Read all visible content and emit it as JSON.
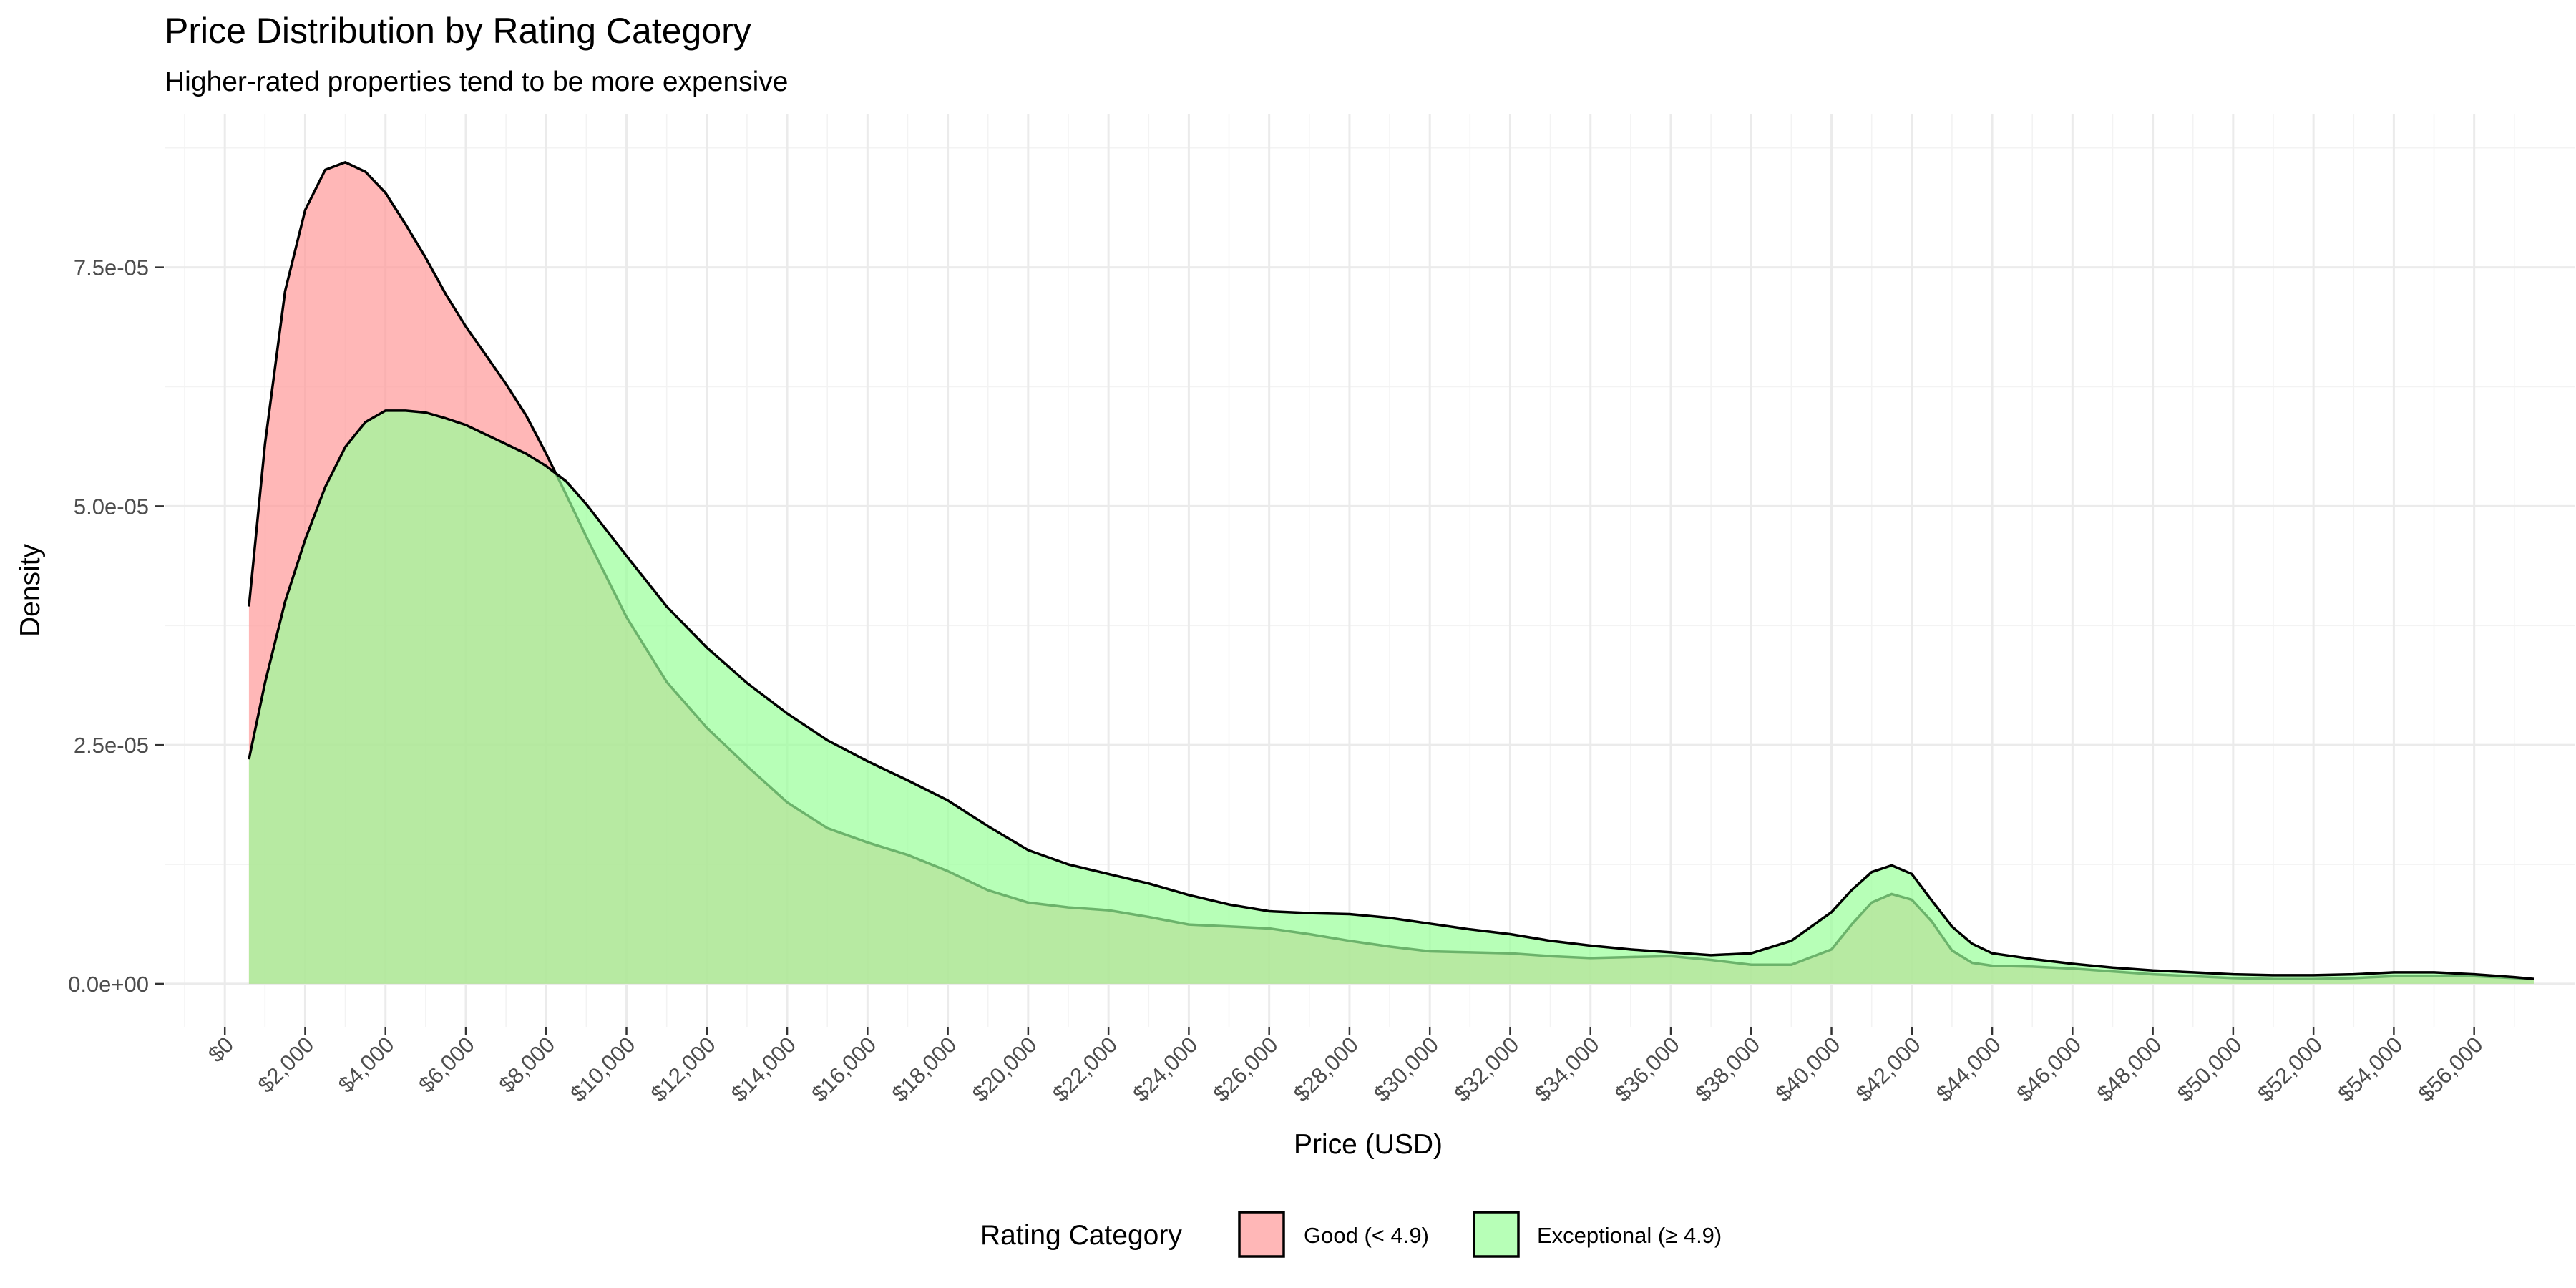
{
  "chart_data": {
    "type": "area",
    "title": "Price Distribution by Rating Category",
    "subtitle": "Higher-rated properties tend to be more expensive",
    "xlabel": "Price (USD)",
    "ylabel": "Density",
    "xlim": [
      -1500,
      58500
    ],
    "ylim": [
      -4.5e-06,
      9.1e-05
    ],
    "x_ticks": [
      0,
      2000,
      4000,
      6000,
      8000,
      10000,
      12000,
      14000,
      16000,
      18000,
      20000,
      22000,
      24000,
      26000,
      28000,
      30000,
      32000,
      34000,
      36000,
      38000,
      40000,
      42000,
      44000,
      46000,
      48000,
      50000,
      52000,
      54000,
      56000
    ],
    "x_tick_labels": [
      "$0",
      "$2,000",
      "$4,000",
      "$6,000",
      "$8,000",
      "$10,000",
      "$12,000",
      "$14,000",
      "$16,000",
      "$18,000",
      "$20,000",
      "$22,000",
      "$24,000",
      "$26,000",
      "$28,000",
      "$30,000",
      "$32,000",
      "$34,000",
      "$36,000",
      "$38,000",
      "$40,000",
      "$42,000",
      "$44,000",
      "$46,000",
      "$48,000",
      "$50,000",
      "$52,000",
      "$54,000",
      "$56,000"
    ],
    "y_ticks": [
      0,
      2.5e-05,
      5e-05,
      7.5e-05
    ],
    "y_tick_labels": [
      "0.0e+00",
      "2.5e-05",
      "5.0e-05",
      "7.5e-05"
    ],
    "grid": true,
    "legend": {
      "title": "Rating Category",
      "position": "bottom"
    },
    "series": [
      {
        "name": "Good (< 4.9)",
        "fill": "#FF9999",
        "opacity": 0.7,
        "x": [
          600,
          1000,
          1500,
          2000,
          2500,
          3000,
          3500,
          4000,
          4500,
          5000,
          5500,
          6000,
          6500,
          7000,
          7500,
          8000,
          8500,
          9000,
          10000,
          11000,
          12000,
          13000,
          14000,
          15000,
          16000,
          17000,
          18000,
          19000,
          20000,
          21000,
          22000,
          23000,
          24000,
          25000,
          26000,
          27000,
          28000,
          29000,
          30000,
          31000,
          32000,
          33000,
          34000,
          35000,
          36000,
          37000,
          38000,
          39000,
          40000,
          40500,
          41000,
          41500,
          42000,
          42500,
          43000,
          43500,
          44000,
          45000,
          46000,
          47000,
          48000,
          49000,
          50000,
          51000,
          52000,
          53000,
          54000,
          55000,
          56000,
          57000,
          57500
        ],
        "y": [
          3.95e-05,
          5.65e-05,
          7.25e-05,
          8.1e-05,
          8.52e-05,
          8.6e-05,
          8.5e-05,
          8.28e-05,
          7.95e-05,
          7.6e-05,
          7.22e-05,
          6.88e-05,
          6.58e-05,
          6.28e-05,
          5.95e-05,
          5.55e-05,
          5.12e-05,
          4.68e-05,
          3.84e-05,
          3.16e-05,
          2.68e-05,
          2.28e-05,
          1.9e-05,
          1.63e-05,
          1.48e-05,
          1.35e-05,
          1.18e-05,
          9.8e-06,
          8.5e-06,
          8e-06,
          7.7e-06,
          7e-06,
          6.2e-06,
          6e-06,
          5.8e-06,
          5.2e-06,
          4.5e-06,
          3.9e-06,
          3.4e-06,
          3.3e-06,
          3.2e-06,
          2.9e-06,
          2.7e-06,
          2.8e-06,
          2.9e-06,
          2.5e-06,
          2e-06,
          2e-06,
          3.6e-06,
          6.2e-06,
          8.5e-06,
          9.4e-06,
          8.8e-06,
          6.5e-06,
          3.5e-06,
          2.2e-06,
          1.9e-06,
          1.8e-06,
          1.6e-06,
          1.3e-06,
          1e-06,
          8e-07,
          6e-07,
          5e-07,
          5e-07,
          6e-07,
          8e-07,
          8e-07,
          8e-07,
          6e-07,
          5e-07
        ]
      },
      {
        "name": "Exceptional (≥ 4.9)",
        "fill": "#99FF99",
        "opacity": 0.7,
        "x": [
          600,
          1000,
          1500,
          2000,
          2500,
          3000,
          3500,
          4000,
          4500,
          5000,
          5500,
          6000,
          6500,
          7000,
          7500,
          8000,
          8500,
          9000,
          10000,
          11000,
          12000,
          13000,
          14000,
          15000,
          16000,
          17000,
          18000,
          19000,
          20000,
          21000,
          22000,
          23000,
          24000,
          25000,
          26000,
          27000,
          28000,
          29000,
          30000,
          31000,
          32000,
          33000,
          34000,
          35000,
          36000,
          37000,
          38000,
          39000,
          40000,
          40500,
          41000,
          41500,
          42000,
          42500,
          43000,
          43500,
          44000,
          45000,
          46000,
          47000,
          48000,
          49000,
          50000,
          51000,
          52000,
          53000,
          54000,
          55000,
          56000,
          57000,
          57500
        ],
        "y": [
          2.35e-05,
          3.15e-05,
          4e-05,
          4.65e-05,
          5.2e-05,
          5.62e-05,
          5.88e-05,
          6e-05,
          6e-05,
          5.98e-05,
          5.92e-05,
          5.85e-05,
          5.75e-05,
          5.65e-05,
          5.55e-05,
          5.42e-05,
          5.26e-05,
          5.02e-05,
          4.48e-05,
          3.95e-05,
          3.52e-05,
          3.15e-05,
          2.83e-05,
          2.55e-05,
          2.33e-05,
          2.13e-05,
          1.92e-05,
          1.65e-05,
          1.4e-05,
          1.25e-05,
          1.15e-05,
          1.05e-05,
          9.3e-06,
          8.3e-06,
          7.6e-06,
          7.4e-06,
          7.3e-06,
          6.9e-06,
          6.3e-06,
          5.7e-06,
          5.2e-06,
          4.5e-06,
          4e-06,
          3.6e-06,
          3.3e-06,
          3e-06,
          3.2e-06,
          4.5e-06,
          7.5e-06,
          9.8e-06,
          1.17e-05,
          1.24e-05,
          1.15e-05,
          8.7e-06,
          6e-06,
          4.2e-06,
          3.2e-06,
          2.6e-06,
          2.1e-06,
          1.7e-06,
          1.4e-06,
          1.2e-06,
          1e-06,
          9e-07,
          9e-07,
          1e-06,
          1.2e-06,
          1.2e-06,
          1e-06,
          7e-07,
          5e-07
        ]
      }
    ]
  }
}
